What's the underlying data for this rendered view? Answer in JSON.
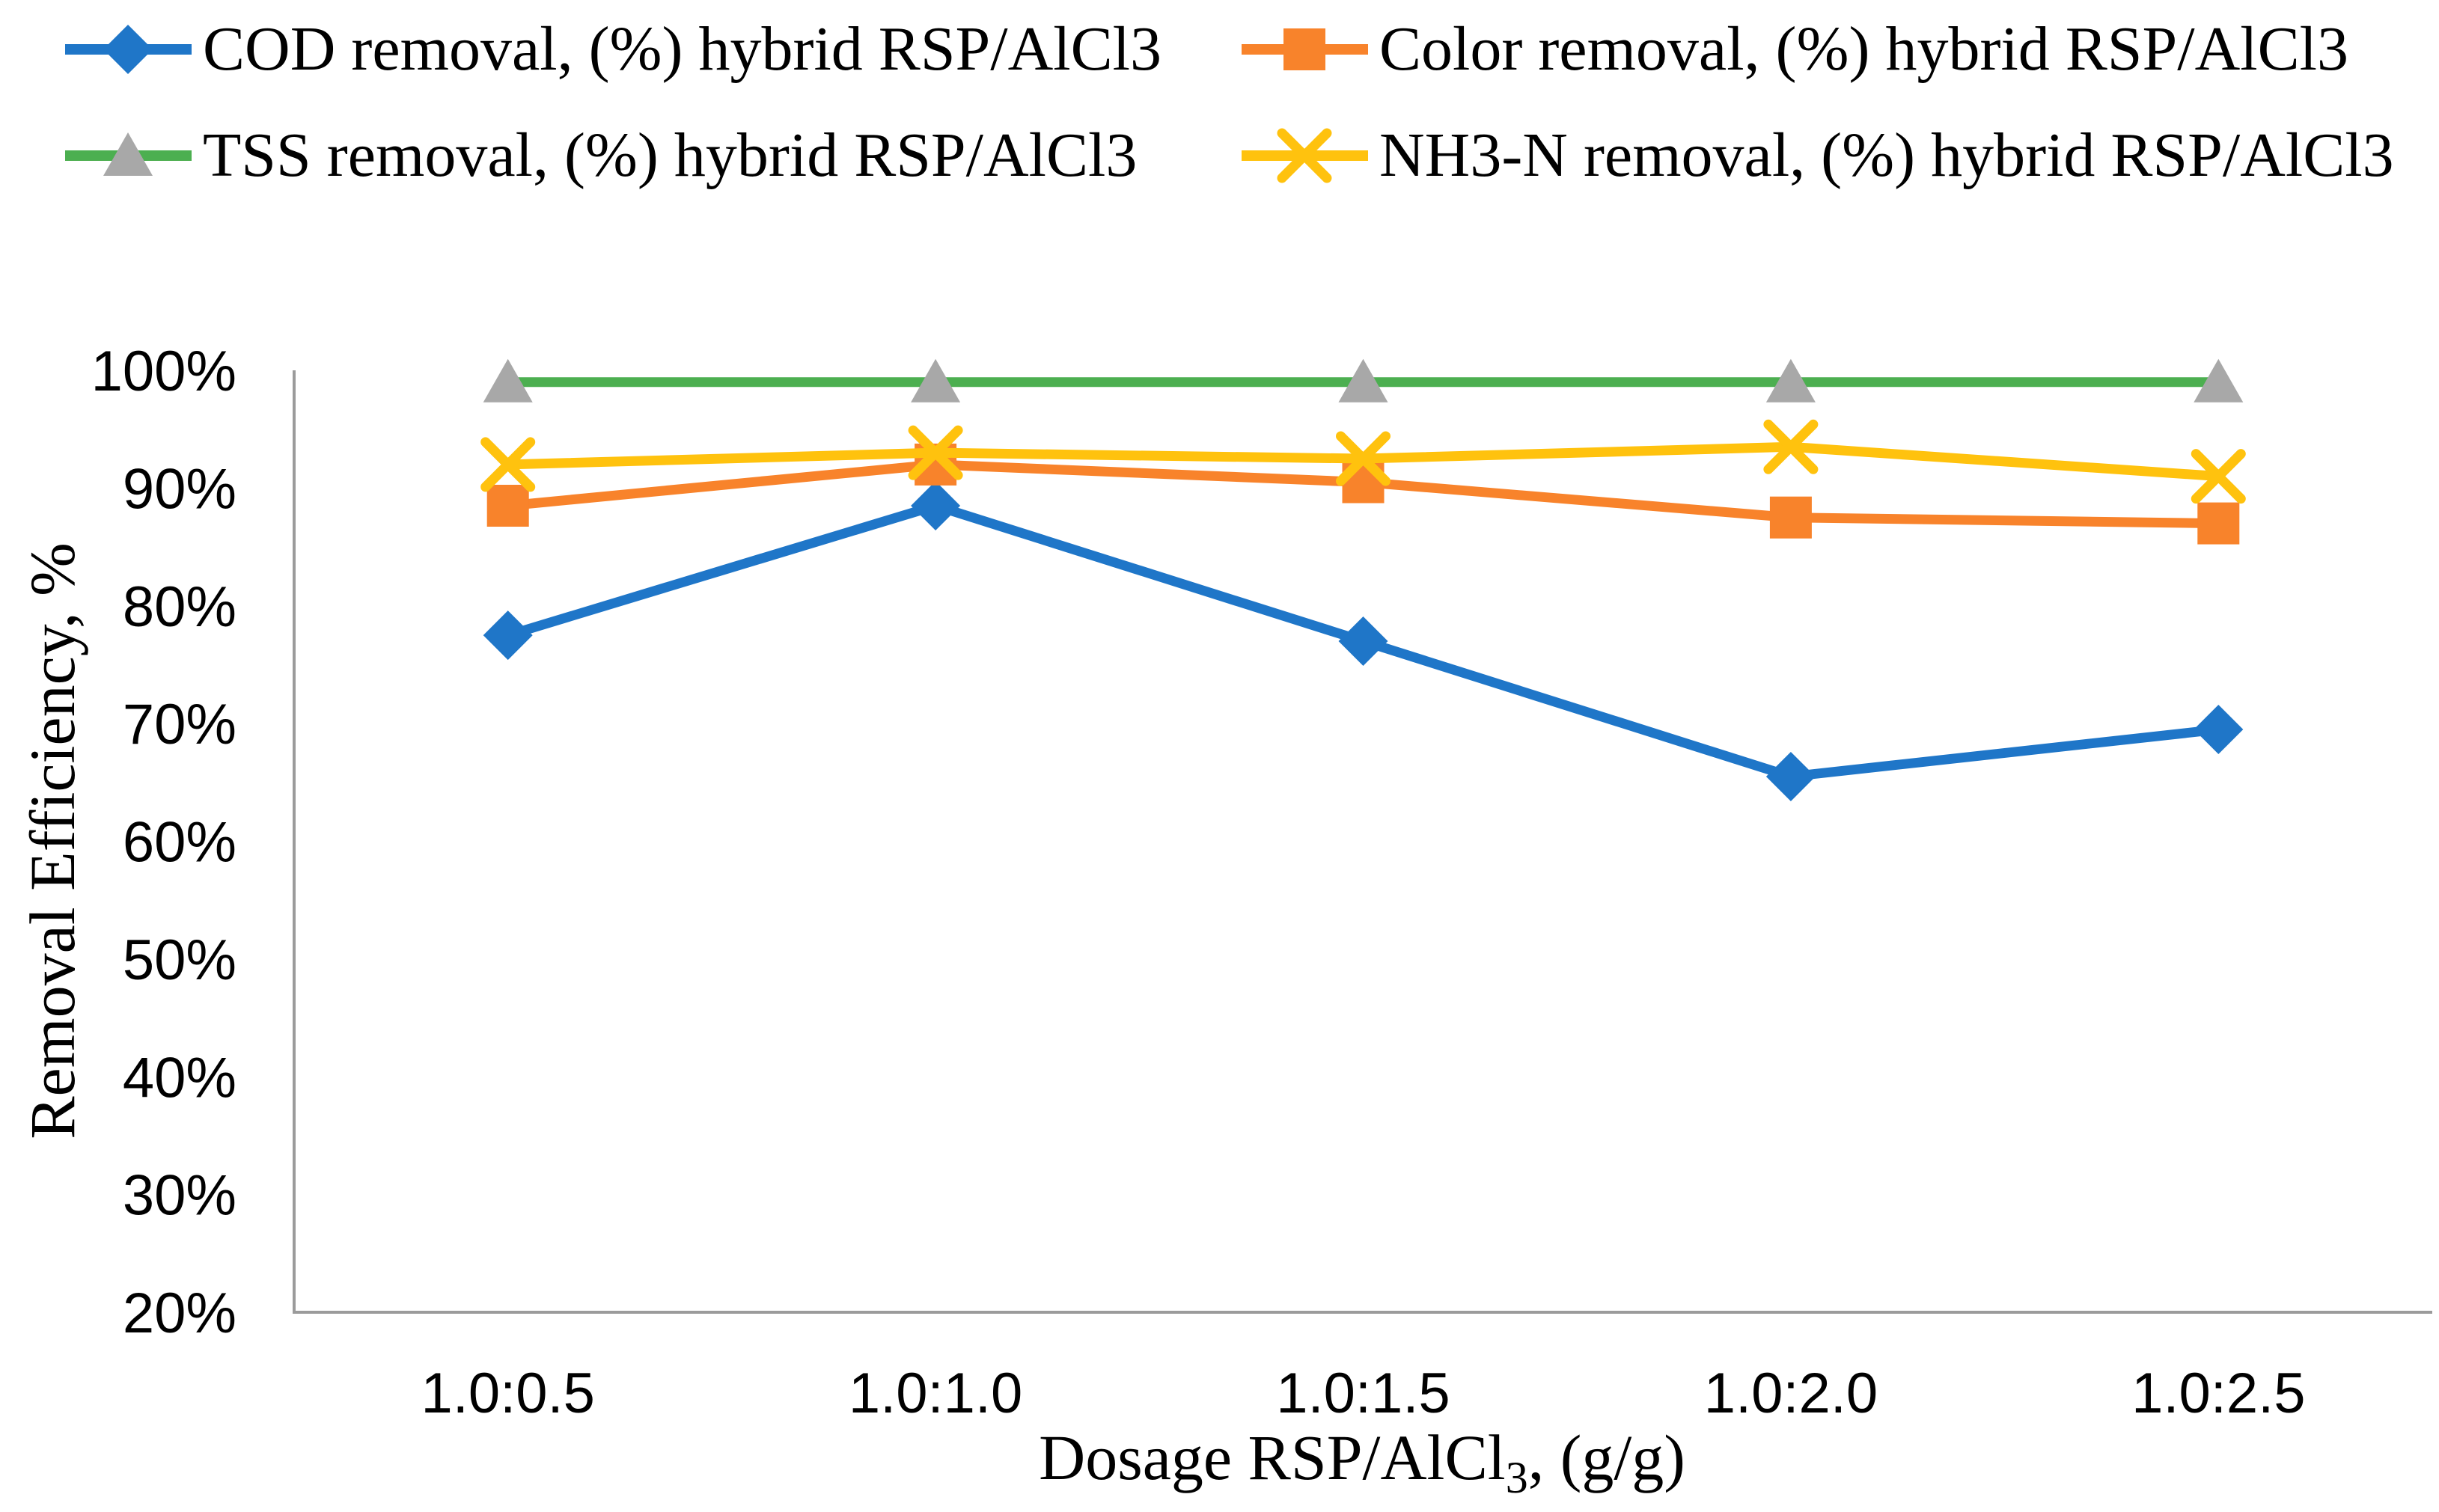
{
  "legend": {
    "position": "top",
    "items": [
      {
        "series": 0,
        "label": "COD removal, (%) hybrid RSP/AlCl3"
      },
      {
        "series": 1,
        "label": "Color removal, (%) hybrid RSP/AlCl3"
      },
      {
        "series": 2,
        "label": "TSS removal, (%) hybrid RSP/AlCl3"
      },
      {
        "series": 3,
        "label": "NH3-N removal, (%) hybrid RSP/AlCl3"
      }
    ]
  },
  "chart_data": {
    "type": "line",
    "title": "",
    "categories": [
      "1.0:0.5",
      "1.0:1.0",
      "1.0:1.5",
      "1.0:2.0",
      "1.0:2.5"
    ],
    "series": [
      {
        "name": "COD removal, (%) hybrid RSP/AlCl3",
        "color": "#1F76C8",
        "marker": "diamond",
        "marker_color": "#1F76C8",
        "values": [
          77.5,
          88.5,
          77.0,
          65.5,
          69.5
        ]
      },
      {
        "name": "Color removal, (%) hybrid RSP/AlCl3",
        "color": "#F8832B",
        "marker": "square",
        "marker_color": "#F8832B",
        "values": [
          88.5,
          92.0,
          90.5,
          87.5,
          87.0
        ]
      },
      {
        "name": "TSS removal, (%) hybrid RSP/AlCl3",
        "color": "#4CAF50",
        "marker": "triangle",
        "marker_color": "#A8A8A8",
        "values": [
          99.0,
          99.0,
          99.0,
          99.0,
          99.0
        ]
      },
      {
        "name": "NH3-N removal, (%) hybrid RSP/AlCl3",
        "color": "#FFC20E",
        "marker": "x",
        "marker_color": "#FFC20E",
        "values": [
          92.0,
          93.0,
          92.5,
          93.5,
          91.0
        ]
      }
    ],
    "xlabel": {
      "prefix": "Dosage RSP/AlCl",
      "sub": "3",
      "suffix": ", (g/g)"
    },
    "ylabel": "Removal Efficiency, %",
    "ylim": [
      20,
      100
    ],
    "yticks": [
      {
        "value": 20,
        "label": "20%"
      },
      {
        "value": 30,
        "label": "30%"
      },
      {
        "value": 40,
        "label": "40%"
      },
      {
        "value": 50,
        "label": "50%"
      },
      {
        "value": 60,
        "label": "60%"
      },
      {
        "value": 70,
        "label": "70%"
      },
      {
        "value": 80,
        "label": "80%"
      },
      {
        "value": 90,
        "label": "90%"
      },
      {
        "value": 100,
        "label": "100%"
      }
    ],
    "grid": false,
    "legend_position": "top"
  },
  "colors": {
    "axis": "#9B9B9B",
    "text": "#000000"
  }
}
